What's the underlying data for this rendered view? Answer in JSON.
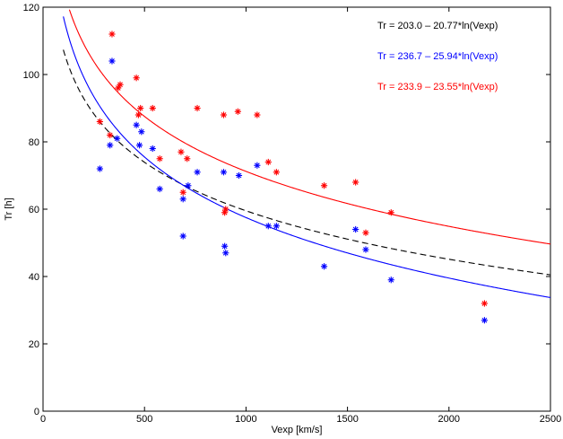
{
  "chart_data": {
    "type": "scatter",
    "xlabel": "Vexp [km/s]",
    "ylabel": "Tr [h]",
    "xlim": [
      0,
      2500
    ],
    "ylim": [
      0,
      120
    ],
    "xticks": [
      0,
      500,
      1000,
      1500,
      2000,
      2500
    ],
    "yticks": [
      0,
      20,
      40,
      60,
      80,
      100,
      120
    ],
    "grid": false,
    "legend_position": "top-right",
    "series": [
      {
        "color": "#0000ff",
        "marker": "*",
        "points": [
          [
            280,
            72
          ],
          [
            330,
            79
          ],
          [
            340,
            104
          ],
          [
            365,
            81
          ],
          [
            460,
            85
          ],
          [
            475,
            79
          ],
          [
            485,
            83
          ],
          [
            540,
            78
          ],
          [
            575,
            66
          ],
          [
            690,
            52
          ],
          [
            690,
            63
          ],
          [
            715,
            67
          ],
          [
            760,
            71
          ],
          [
            890,
            71
          ],
          [
            895,
            49
          ],
          [
            900,
            47
          ],
          [
            965,
            70
          ],
          [
            1055,
            73
          ],
          [
            1110,
            55
          ],
          [
            1150,
            55
          ],
          [
            1385,
            43
          ],
          [
            1540,
            54
          ],
          [
            1590,
            48
          ],
          [
            1715,
            39
          ],
          [
            2175,
            27
          ]
        ]
      },
      {
        "color": "#ff0000",
        "marker": "*",
        "points": [
          [
            280,
            86
          ],
          [
            330,
            82
          ],
          [
            340,
            112
          ],
          [
            370,
            96
          ],
          [
            380,
            97
          ],
          [
            460,
            99
          ],
          [
            470,
            88
          ],
          [
            480,
            90
          ],
          [
            540,
            90
          ],
          [
            575,
            75
          ],
          [
            680,
            77
          ],
          [
            690,
            65
          ],
          [
            710,
            75
          ],
          [
            760,
            90
          ],
          [
            890,
            88
          ],
          [
            895,
            59
          ],
          [
            900,
            60
          ],
          [
            960,
            89
          ],
          [
            1055,
            88
          ],
          [
            1110,
            74
          ],
          [
            1150,
            71
          ],
          [
            1385,
            67
          ],
          [
            1540,
            68
          ],
          [
            1590,
            53
          ],
          [
            1715,
            59
          ],
          [
            2175,
            32
          ]
        ]
      }
    ],
    "curves": [
      {
        "label": "Tr = 203.0 – 20.77*ln(Vexp)",
        "a": 203.0,
        "b": 20.77,
        "color": "#000000",
        "dash": "dashed"
      },
      {
        "label": "Tr = 236.7 – 25.94*ln(Vexp)",
        "a": 236.7,
        "b": 25.94,
        "color": "#0000ff",
        "dash": "solid"
      },
      {
        "label": "Tr = 233.9 – 23.55*ln(Vexp)",
        "a": 233.9,
        "b": 23.55,
        "color": "#ff0000",
        "dash": "solid"
      }
    ]
  }
}
